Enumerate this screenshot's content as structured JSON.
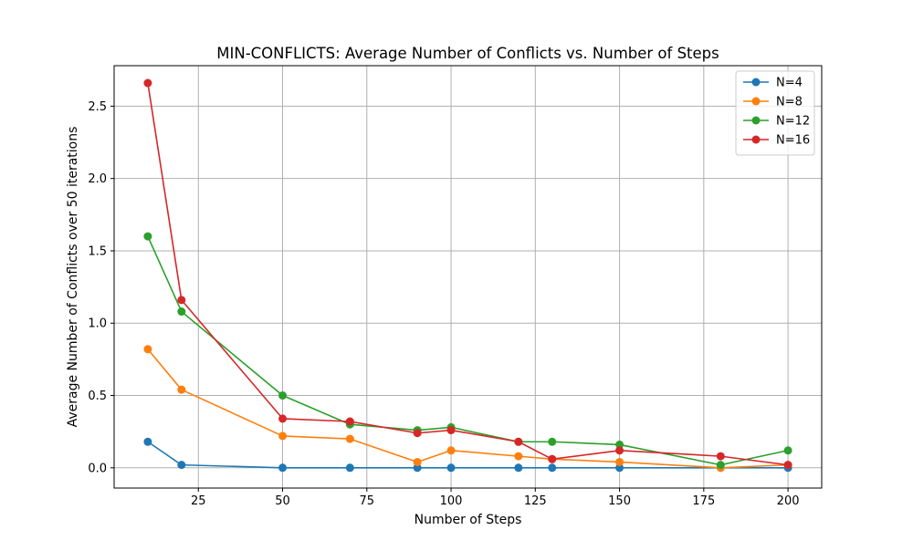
{
  "chart_data": {
    "type": "line",
    "title": "MIN-CONFLICTS:   Average Number of Conflicts vs. Number of Steps",
    "xlabel": "Number of Steps",
    "ylabel": "Average Number of Conflicts over 50 iterations",
    "x": [
      10,
      20,
      50,
      70,
      90,
      100,
      120,
      130,
      150,
      180,
      200
    ],
    "xlim": [
      0,
      210
    ],
    "ylim": [
      -0.14,
      2.78
    ],
    "xticks": [
      25,
      50,
      75,
      100,
      125,
      150,
      175,
      200
    ],
    "yticks": [
      0.0,
      0.5,
      1.0,
      1.5,
      2.0,
      2.5
    ],
    "xtick_labels": [
      "25",
      "50",
      "75",
      "100",
      "125",
      "150",
      "175",
      "200"
    ],
    "ytick_labels": [
      "0.0",
      "0.5",
      "1.0",
      "1.5",
      "2.0",
      "2.5"
    ],
    "grid": true,
    "legend_position": "top-right",
    "series": [
      {
        "name": "N=4",
        "color": "#1f77b4",
        "values": [
          0.18,
          0.02,
          0.0,
          0.0,
          0.0,
          0.0,
          0.0,
          0.0,
          0.0,
          0.0,
          0.0
        ]
      },
      {
        "name": "N=8",
        "color": "#ff7f0e",
        "values": [
          0.82,
          0.54,
          0.22,
          0.2,
          0.04,
          0.12,
          0.08,
          0.06,
          0.04,
          0.0,
          0.02
        ]
      },
      {
        "name": "N=12",
        "color": "#2ca02c",
        "values": [
          1.6,
          1.08,
          0.5,
          0.3,
          0.26,
          0.28,
          0.18,
          0.18,
          0.16,
          0.02,
          0.12
        ]
      },
      {
        "name": "N=16",
        "color": "#d62728",
        "values": [
          2.66,
          1.16,
          0.34,
          0.32,
          0.24,
          0.26,
          0.18,
          0.06,
          0.12,
          0.08,
          0.02
        ]
      }
    ]
  }
}
